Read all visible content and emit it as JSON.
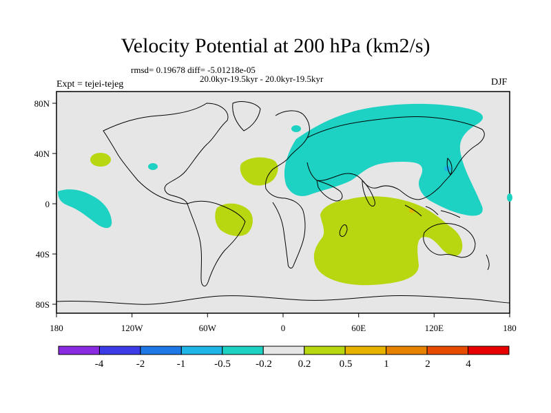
{
  "title": "Velocity Potential at 200 hPa (km2/s)",
  "stats": "rmsd= 0.19678 diff= -5.01218e-05",
  "period": "20.0kyr-19.5kyr - 20.0kyr-19.5kyr",
  "experiment": "Expt = tejei-tejeg",
  "season": "DJF",
  "axes": {
    "x_ticks": [
      "180",
      "120W",
      "60W",
      "0",
      "60E",
      "120E",
      "180"
    ],
    "y_ticks": [
      "80N",
      "40N",
      "0",
      "40S",
      "80S"
    ]
  },
  "colorbar": {
    "colors": [
      "#8a2be2",
      "#3c3ce6",
      "#1e78e6",
      "#1eb4e6",
      "#1ed2c3",
      "#e6e6e6",
      "#b9d710",
      "#e6b400",
      "#e68200",
      "#e64b00",
      "#e60000"
    ],
    "labels": [
      "-4",
      "-2",
      "-1",
      "-0.5",
      "-0.2",
      "0.2",
      "0.5",
      "1",
      "2",
      "4"
    ]
  },
  "colors": {
    "background": "#e6e6e6",
    "negative_shade": "#1ed2c3",
    "positive_shade": "#b9d710",
    "minor_negative": "#1eb4e6",
    "minor_positive": "#e6b400"
  }
}
